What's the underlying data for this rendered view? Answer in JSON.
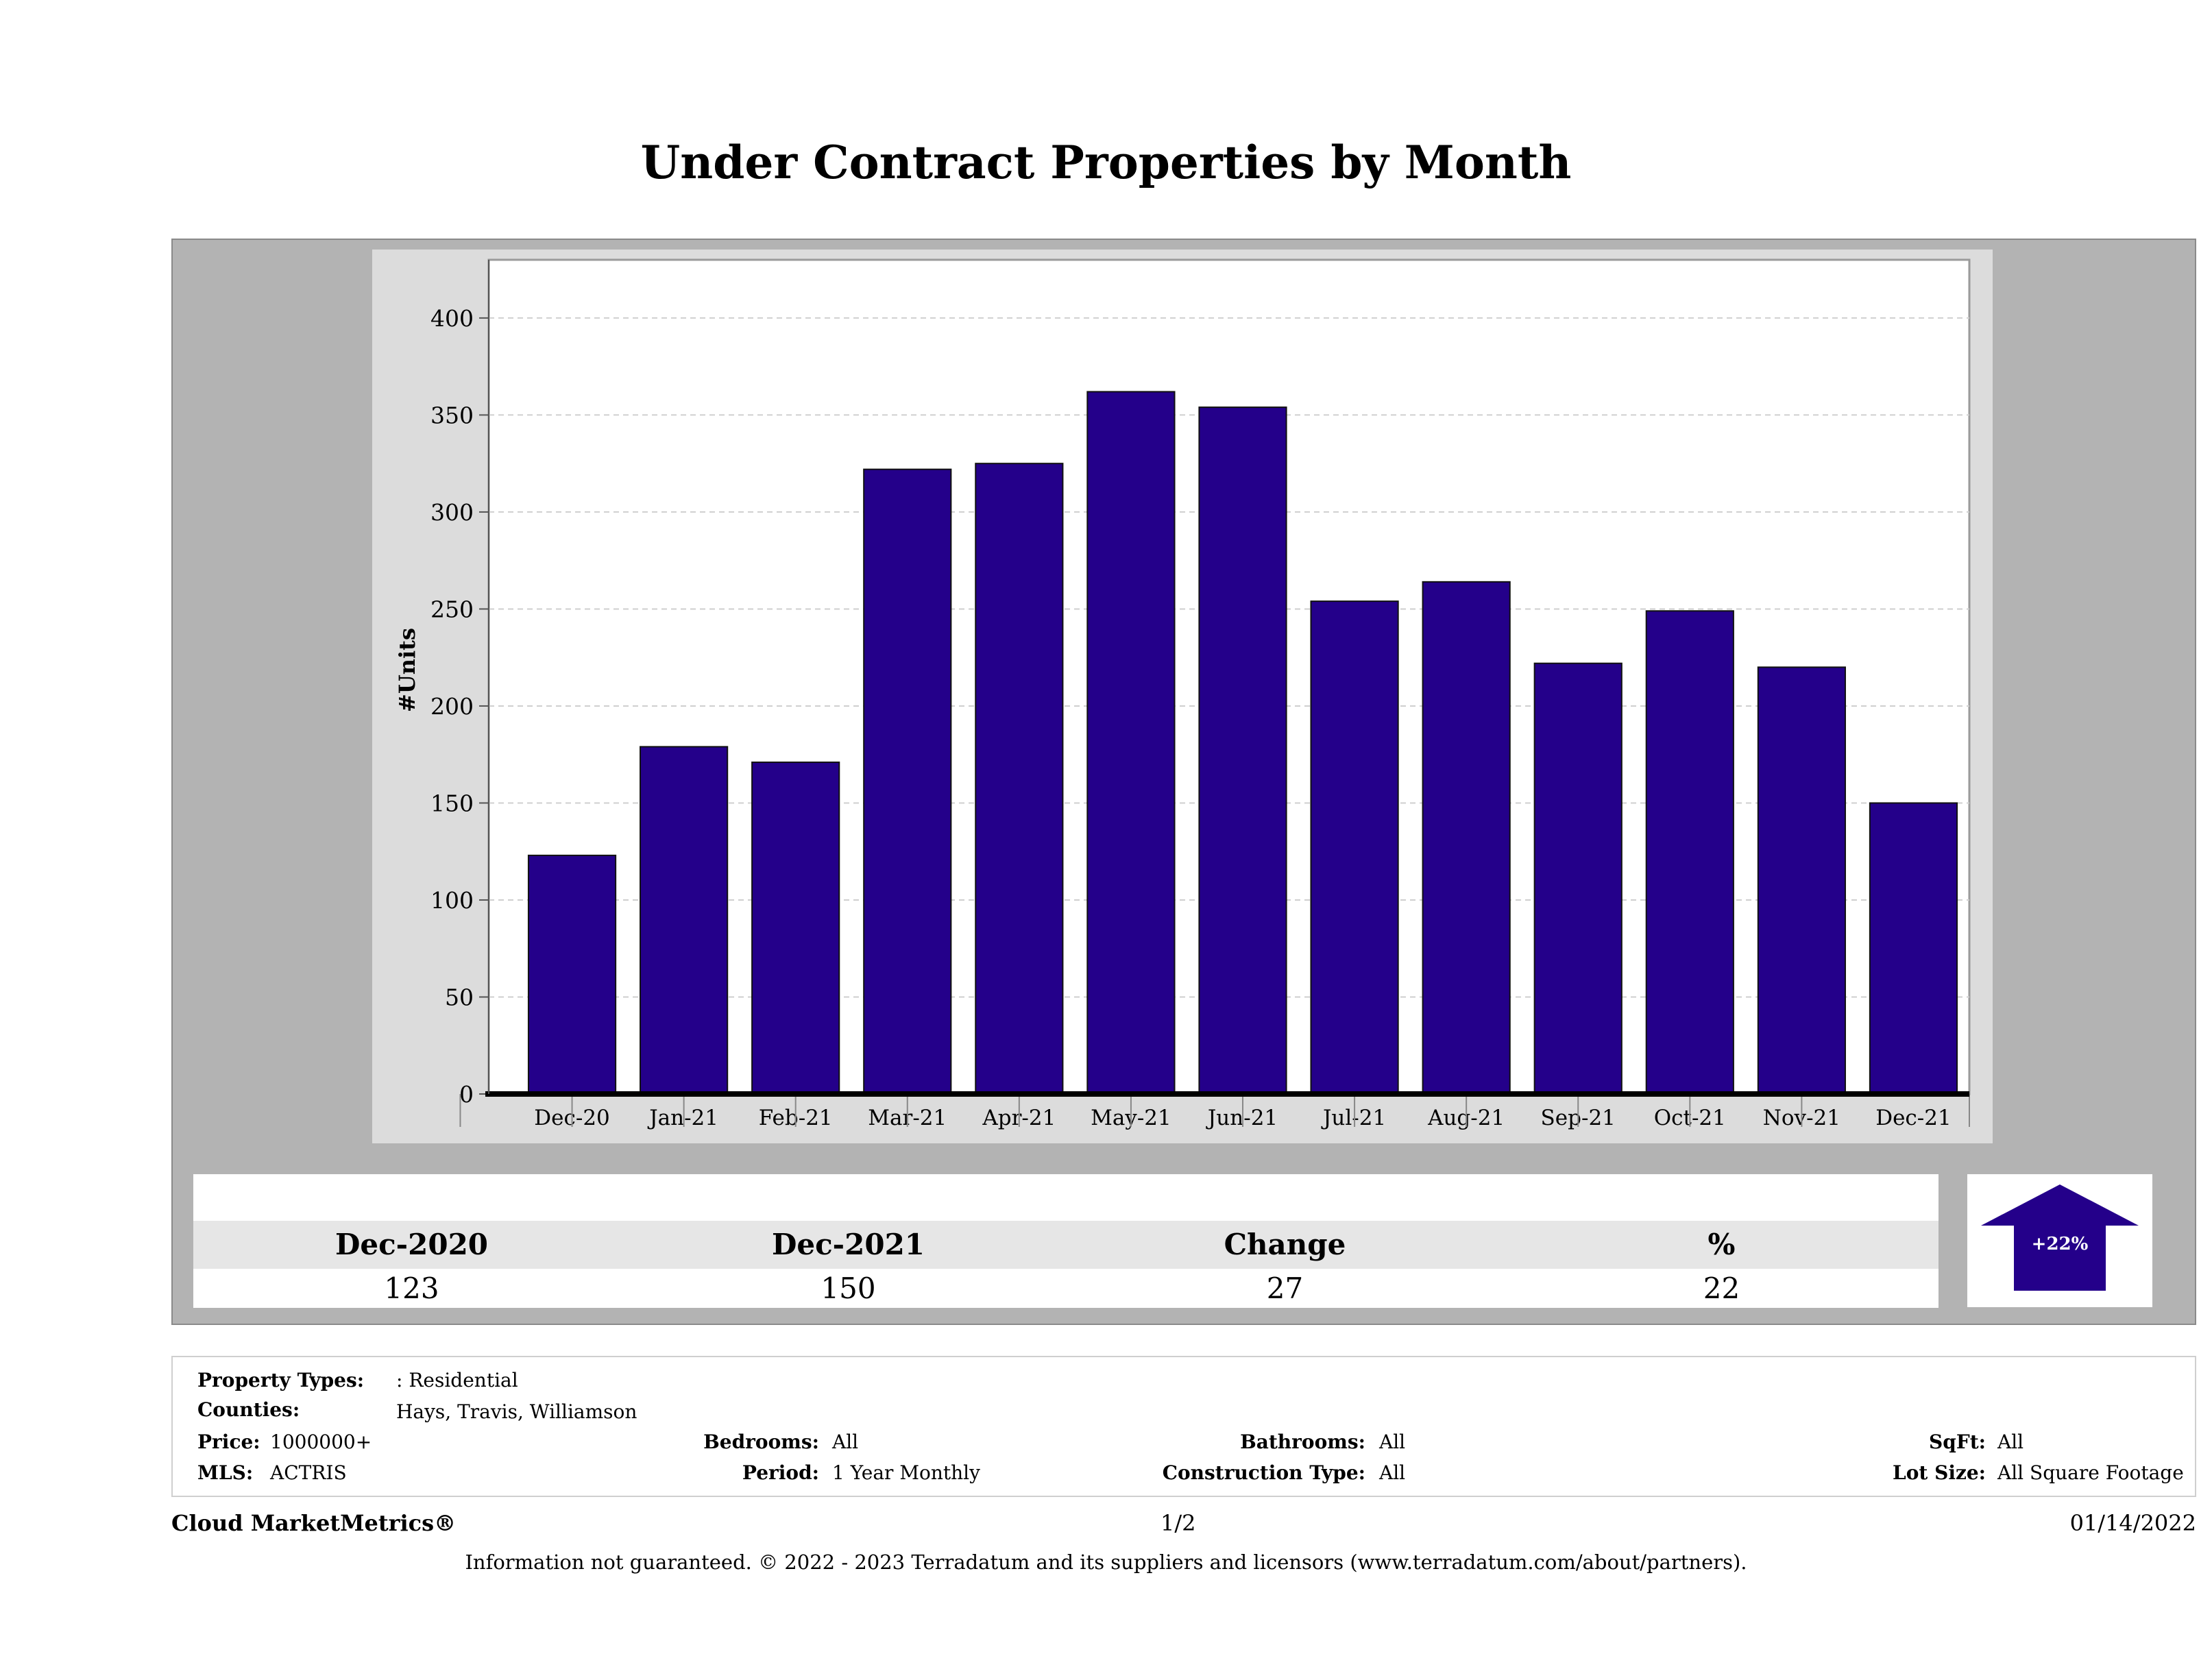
{
  "title": "Under Contract Properties by Month",
  "chart_data": {
    "type": "bar",
    "categories": [
      "Dec-20",
      "Jan-21",
      "Feb-21",
      "Mar-21",
      "Apr-21",
      "May-21",
      "Jun-21",
      "Jul-21",
      "Aug-21",
      "Sep-21",
      "Oct-21",
      "Nov-21",
      "Dec-21"
    ],
    "values": [
      123,
      179,
      171,
      322,
      325,
      362,
      354,
      254,
      264,
      222,
      249,
      220,
      150
    ],
    "ylabel": "#Units",
    "xlabel": "",
    "ylim": [
      0,
      430
    ],
    "yticks": [
      0,
      50,
      100,
      150,
      200,
      250,
      300,
      350,
      400
    ],
    "bar_color": "#24008a",
    "grid": true
  },
  "summary": {
    "headers": [
      "Dec-2020",
      "Dec-2021",
      "Change",
      "%"
    ],
    "values": [
      "123",
      "150",
      "27",
      "22"
    ],
    "badge": "+22%",
    "badge_color": "#24008a"
  },
  "filters": {
    "property_types_label": "Property Types:",
    "property_types_value": ": Residential",
    "counties_label": "Counties:",
    "counties_value": "Hays, Travis, Williamson",
    "price_label": "Price:",
    "price_value": "1000000+",
    "mls_label": "MLS:",
    "mls_value": "ACTRIS",
    "bedrooms_label": "Bedrooms:",
    "bedrooms_value": "All",
    "period_label": "Period:",
    "period_value": "1 Year Monthly",
    "bathrooms_label": "Bathrooms:",
    "bathrooms_value": "All",
    "construction_label": "Construction Type:",
    "construction_value": "All",
    "sqft_label": "SqFt:",
    "sqft_value": "All",
    "lotsize_label": "Lot Size:",
    "lotsize_value": "All Square Footage"
  },
  "footer": {
    "brand": "Cloud MarketMetrics®",
    "page": "1/2",
    "date": "01/14/2022",
    "disclaimer": "Information not guaranteed. © 2022 - 2023 Terradatum and its suppliers and licensors (www.terradatum.com/about/partners)."
  }
}
